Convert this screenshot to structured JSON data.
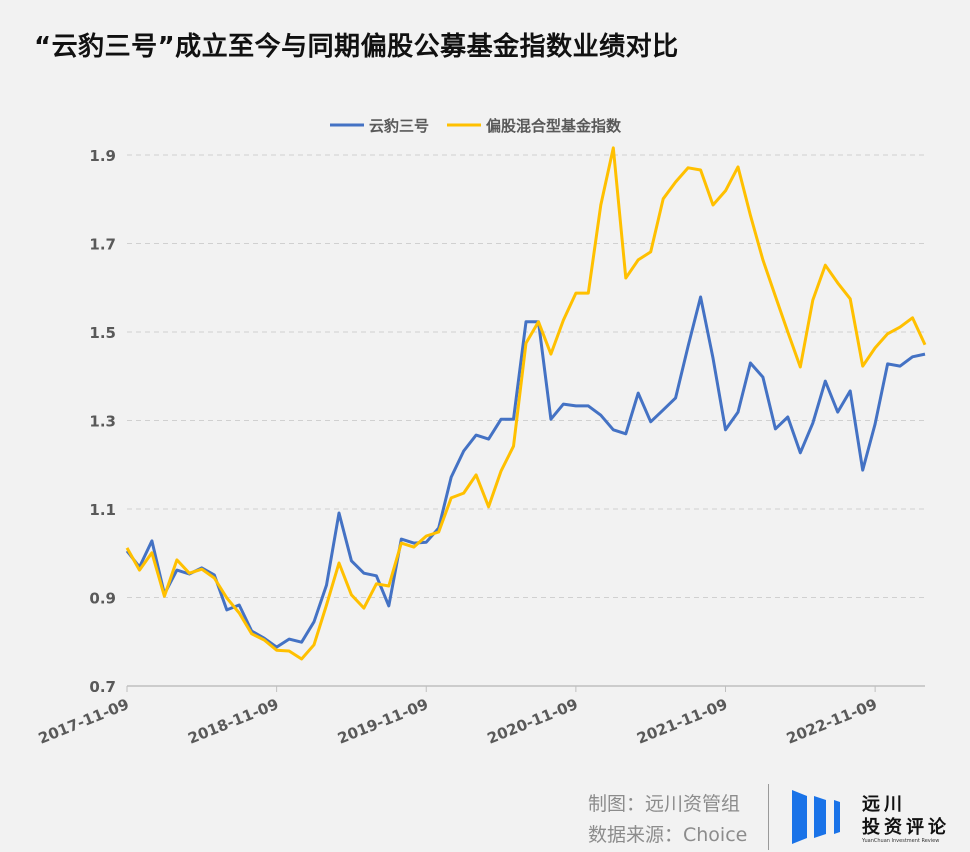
{
  "chart_data": {
    "type": "line",
    "title": "“云豹三号”成立至今与同期偏股公募基金指数业绩对比",
    "xlabel": "",
    "ylabel": "",
    "ylim": [
      0.7,
      1.95
    ],
    "yticks": [
      0.7,
      0.9,
      1.1,
      1.3,
      1.5,
      1.7,
      1.9
    ],
    "ytick_labels": [
      "0.7",
      "0.9",
      "1.1",
      "1.3",
      "1.5",
      "1.7",
      "1.9"
    ],
    "x_unit": "month index from 2017-11-09",
    "xlim": [
      0,
      64
    ],
    "xticks": [
      0,
      12,
      24,
      36,
      48,
      60
    ],
    "xtick_labels": [
      "2017-11-09",
      "2018-11-09",
      "2019-11-09",
      "2020-11-09",
      "2021-11-09",
      "2022-11-09"
    ],
    "grid": "horizontal dashed",
    "legend_position": "top-center",
    "series": [
      {
        "name": "云豹三号",
        "color": "#4472c4",
        "values": [
          1.005,
          0.969,
          1.028,
          0.908,
          0.962,
          0.953,
          0.967,
          0.951,
          0.872,
          0.883,
          0.824,
          0.808,
          0.788,
          0.806,
          0.799,
          0.845,
          0.928,
          1.091,
          0.983,
          0.955,
          0.949,
          0.881,
          1.032,
          1.023,
          1.025,
          1.057,
          1.172,
          1.231,
          1.267,
          1.258,
          1.303,
          1.303,
          1.523,
          1.523,
          1.303,
          1.337,
          1.333,
          1.333,
          1.312,
          1.279,
          1.27,
          1.362,
          1.297,
          1.324,
          1.351,
          1.468,
          1.579,
          1.441,
          1.279,
          1.319,
          1.43,
          1.398,
          1.281,
          1.308,
          1.227,
          1.294,
          1.389,
          1.319,
          1.367,
          1.188,
          1.292,
          1.428,
          1.423,
          1.444,
          1.45
        ]
      },
      {
        "name": "偏股混合型基金指数",
        "color": "#ffc000",
        "values": [
          1.012,
          0.962,
          1.001,
          0.903,
          0.985,
          0.955,
          0.964,
          0.944,
          0.899,
          0.865,
          0.818,
          0.804,
          0.781,
          0.779,
          0.761,
          0.793,
          0.883,
          0.978,
          0.906,
          0.876,
          0.931,
          0.926,
          1.023,
          1.014,
          1.039,
          1.048,
          1.125,
          1.136,
          1.177,
          1.105,
          1.186,
          1.242,
          1.475,
          1.523,
          1.45,
          1.527,
          1.588,
          1.588,
          1.787,
          1.916,
          1.622,
          1.663,
          1.681,
          1.801,
          1.839,
          1.871,
          1.866,
          1.787,
          1.819,
          1.873,
          1.764,
          1.663,
          1.581,
          1.5,
          1.421,
          1.572,
          1.651,
          1.611,
          1.575,
          1.423,
          1.464,
          1.496,
          1.511,
          1.532,
          1.471
        ]
      }
    ]
  },
  "footer": {
    "maker": "制图：远川资管组",
    "source": "数据来源：Choice"
  },
  "logo": {
    "line1": "远川",
    "line2": "投资评论",
    "sub": "YuanChuan Investment Review"
  }
}
